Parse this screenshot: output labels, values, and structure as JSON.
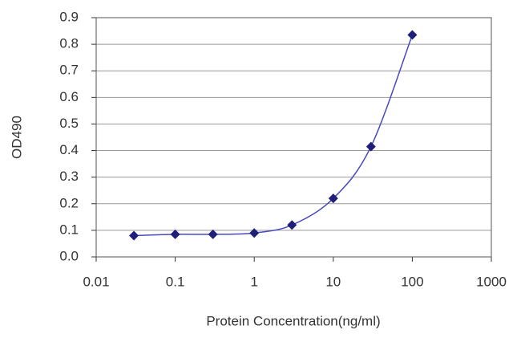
{
  "chart_data": {
    "type": "line",
    "x_label": "Protein Concentration(ng/ml)",
    "y_label": "OD490",
    "x": [
      0.03,
      0.1,
      0.3,
      1,
      3,
      10,
      30,
      100
    ],
    "values": [
      0.08,
      0.085,
      0.085,
      0.09,
      0.12,
      0.22,
      0.415,
      0.835
    ],
    "color": "#1f1f7a",
    "line_color": "#4848c0",
    "x_log": true,
    "xlim": [
      0.01,
      1000
    ],
    "xticks": [
      0.01,
      0.1,
      1,
      10,
      100,
      1000
    ],
    "ylim": [
      0,
      0.9
    ],
    "yticks": [
      {
        "value": 0,
        "label": "0.0"
      },
      0.1,
      0.2,
      0.3,
      0.4,
      0.5,
      0.6,
      0.7,
      0.8,
      0.9
    ],
    "grid": true
  }
}
